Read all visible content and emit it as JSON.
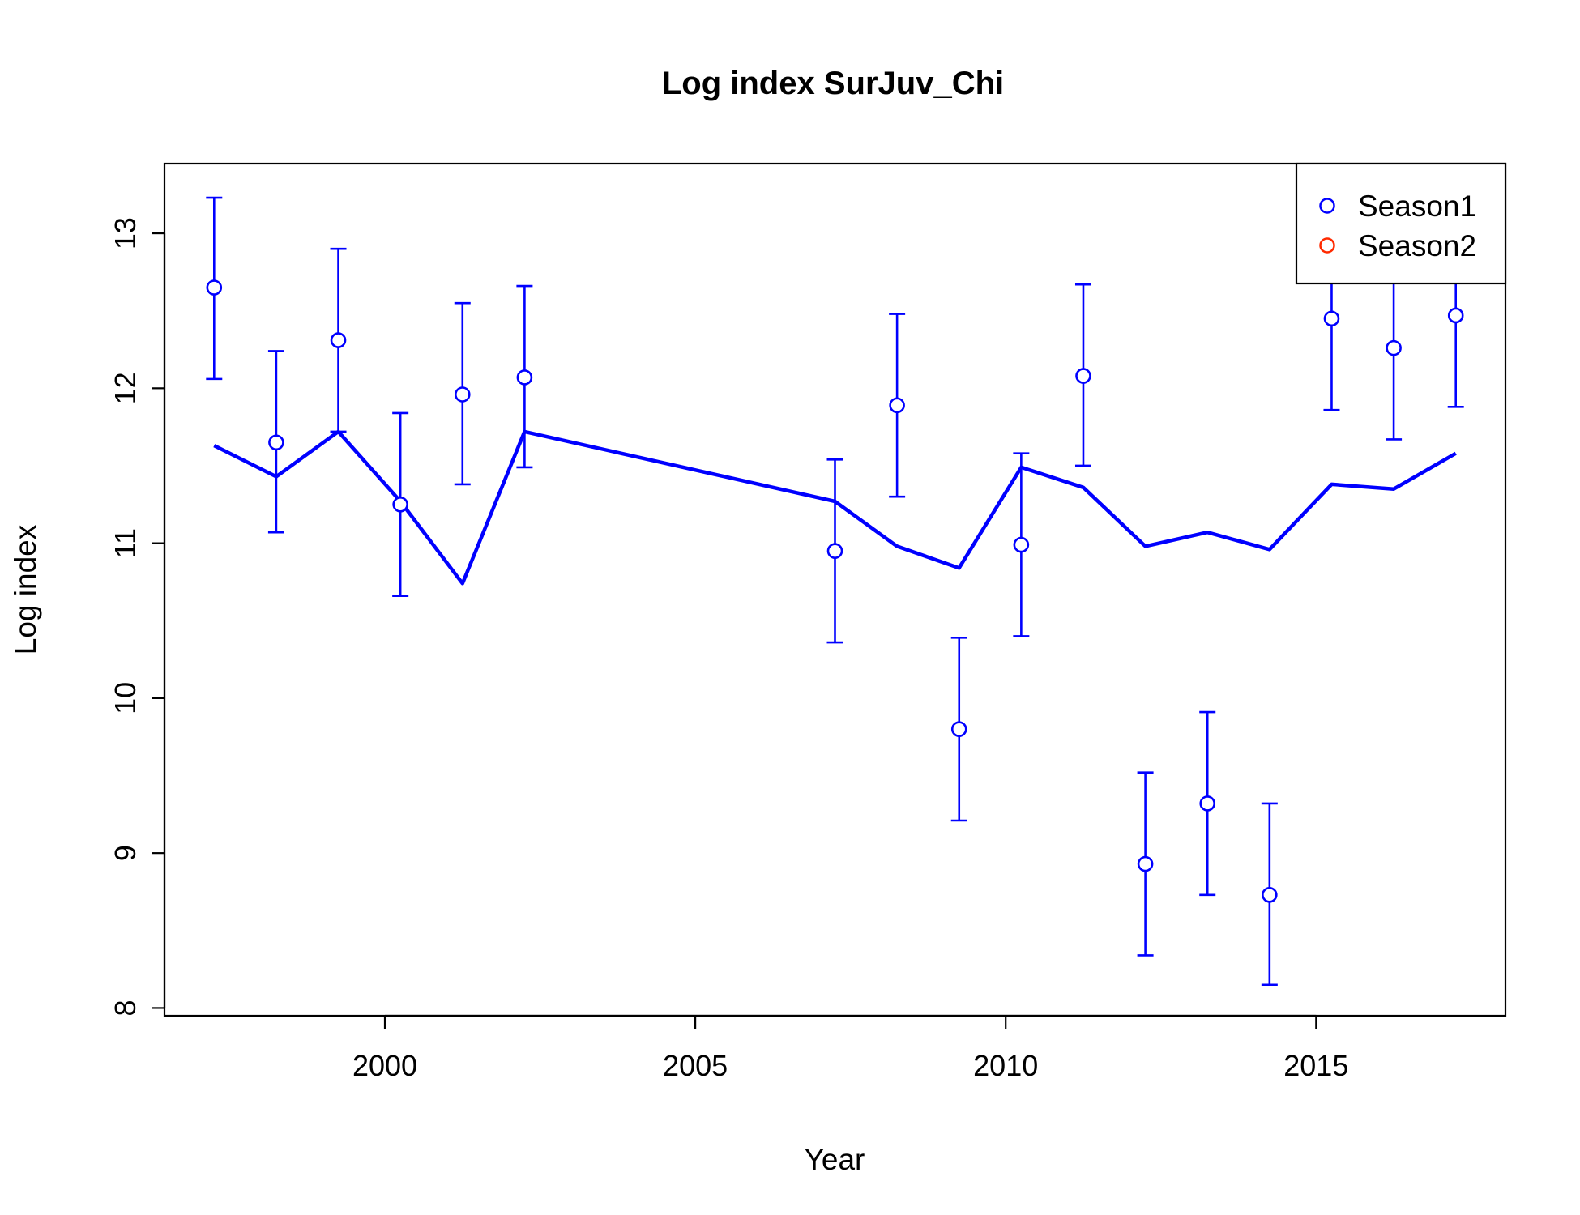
{
  "chart_data": {
    "type": "line",
    "title": "Log index SurJuv_Chi",
    "xlabel": "Year",
    "ylabel": "Log index",
    "xlim": [
      1996.45,
      2018.05
    ],
    "ylim": [
      7.95,
      13.45
    ],
    "x_ticks": [
      2000,
      2005,
      2010,
      2015
    ],
    "y_ticks": [
      8,
      9,
      10,
      11,
      12,
      13
    ],
    "grid": false,
    "legend": {
      "position": "top-right",
      "entries": [
        "Season1",
        "Season2"
      ]
    },
    "colors": {
      "Season1": "#0000ff",
      "Season2": "#ff2a00",
      "fit": "#0000ff"
    },
    "observed": {
      "name": "Season1",
      "points": [
        {
          "x": 1997.25,
          "y": 12.65,
          "lo": 12.06,
          "hi": 13.23
        },
        {
          "x": 1998.25,
          "y": 11.65,
          "lo": 11.07,
          "hi": 12.24
        },
        {
          "x": 1999.25,
          "y": 12.31,
          "lo": 11.72,
          "hi": 12.9
        },
        {
          "x": 2000.25,
          "y": 11.25,
          "lo": 10.66,
          "hi": 11.84
        },
        {
          "x": 2001.25,
          "y": 11.96,
          "lo": 11.38,
          "hi": 12.55
        },
        {
          "x": 2002.25,
          "y": 12.07,
          "lo": 11.49,
          "hi": 12.66
        },
        {
          "x": 2007.25,
          "y": 10.95,
          "lo": 10.36,
          "hi": 11.54
        },
        {
          "x": 2008.25,
          "y": 11.89,
          "lo": 11.3,
          "hi": 12.48
        },
        {
          "x": 2009.25,
          "y": 9.8,
          "lo": 9.21,
          "hi": 10.39
        },
        {
          "x": 2010.25,
          "y": 10.99,
          "lo": 10.4,
          "hi": 11.58
        },
        {
          "x": 2011.25,
          "y": 12.08,
          "lo": 11.5,
          "hi": 12.67
        },
        {
          "x": 2012.25,
          "y": 8.93,
          "lo": 8.34,
          "hi": 9.52
        },
        {
          "x": 2013.25,
          "y": 9.32,
          "lo": 8.73,
          "hi": 9.91
        },
        {
          "x": 2014.25,
          "y": 8.73,
          "lo": 8.15,
          "hi": 9.32
        },
        {
          "x": 2015.25,
          "y": 12.45,
          "lo": 11.86,
          "hi": 13.04
        },
        {
          "x": 2016.25,
          "y": 12.26,
          "lo": 11.67,
          "hi": 12.85
        },
        {
          "x": 2017.25,
          "y": 12.47,
          "lo": 11.88,
          "hi": 13.06
        }
      ]
    },
    "fitted": {
      "x": [
        1997.25,
        1998.25,
        1999.25,
        2000.25,
        2001.25,
        2002.25,
        2007.25,
        2008.25,
        2009.25,
        2010.25,
        2011.25,
        2012.25,
        2013.25,
        2014.25,
        2015.25,
        2016.25,
        2017.25
      ],
      "y": [
        11.63,
        11.43,
        11.72,
        11.27,
        10.74,
        11.72,
        11.27,
        10.98,
        10.84,
        11.49,
        11.36,
        10.98,
        11.07,
        10.96,
        11.38,
        11.35,
        11.58
      ]
    }
  }
}
